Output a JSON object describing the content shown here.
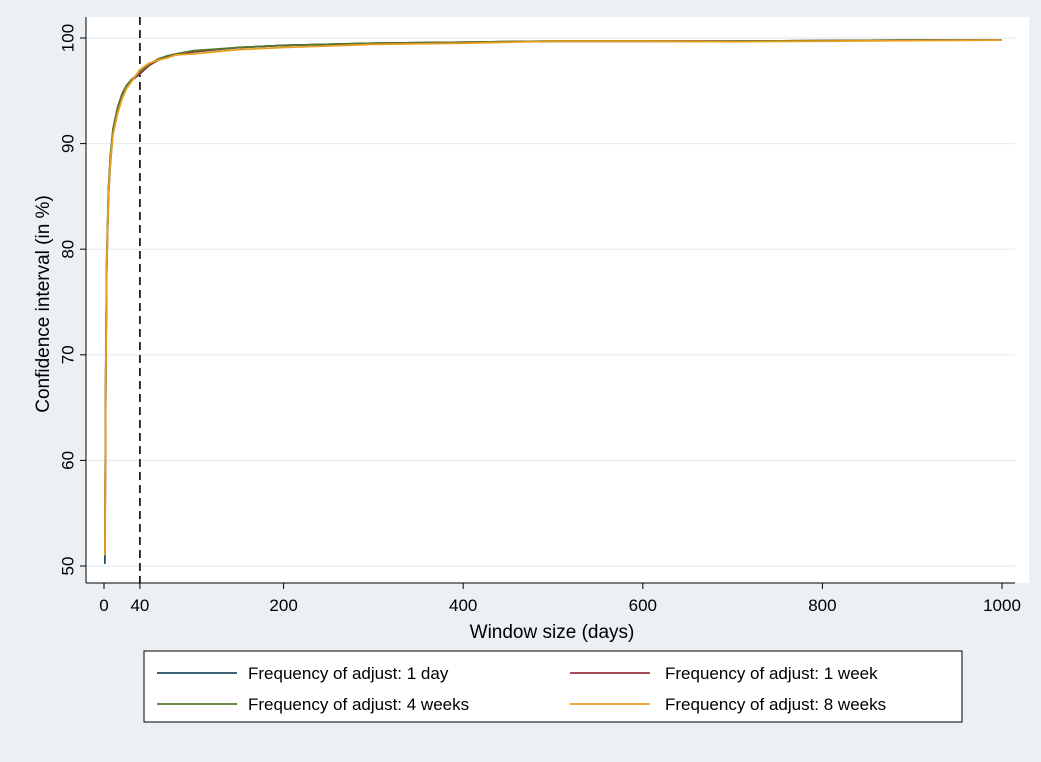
{
  "chart_data": {
    "type": "line",
    "title": "",
    "xlabel": "Window size (days)",
    "ylabel": "Confidence interval (in %)",
    "xlim": [
      0,
      1000
    ],
    "ylim": [
      50,
      100
    ],
    "xticks": [
      0,
      40,
      200,
      400,
      600,
      800,
      1000
    ],
    "yticks": [
      50,
      60,
      70,
      80,
      90,
      100
    ],
    "grid": "horizontal",
    "legend": "bottom",
    "reference_line": {
      "x": 40,
      "style": "dashed"
    },
    "series": [
      {
        "name": "Frequency of adjust: 1 day",
        "color": "#1f4e66",
        "x": [
          1,
          2,
          3,
          5,
          7,
          10,
          15,
          20,
          25,
          30,
          40,
          50,
          60,
          70,
          80,
          100,
          150,
          200,
          300,
          400,
          500,
          600,
          700,
          800,
          900,
          1000
        ],
        "y": [
          50.2,
          68,
          78,
          85,
          88,
          91,
          93,
          94.4,
          95.4,
          96,
          96.6,
          97.4,
          97.9,
          98.2,
          98.4,
          98.7,
          99.1,
          99.3,
          99.5,
          99.6,
          99.7,
          99.7,
          99.7,
          99.75,
          99.8,
          99.8
        ]
      },
      {
        "name": "Frequency of adjust: 1 week",
        "color": "#90353b",
        "x": [
          1,
          2,
          3,
          5,
          7,
          10,
          15,
          20,
          25,
          30,
          40,
          50,
          60,
          70,
          80,
          100,
          150,
          200,
          300,
          400,
          500,
          600,
          700,
          800,
          900,
          1000
        ],
        "y": [
          51.5,
          68.5,
          78.5,
          85.5,
          88.5,
          91.2,
          93.2,
          94.5,
          95.3,
          95.9,
          96.6,
          97.4,
          97.9,
          98.2,
          98.4,
          98.7,
          99.1,
          99.3,
          99.5,
          99.6,
          99.7,
          99.7,
          99.7,
          99.75,
          99.8,
          99.8
        ]
      },
      {
        "name": "Frequency of adjust: 4 weeks",
        "color": "#55752f",
        "x": [
          1,
          2,
          3,
          5,
          7,
          10,
          15,
          20,
          25,
          30,
          40,
          50,
          60,
          70,
          80,
          100,
          150,
          200,
          300,
          400,
          500,
          600,
          700,
          800,
          900,
          1000
        ],
        "y": [
          52,
          69,
          79,
          85.8,
          88.8,
          91.4,
          93.4,
          94.7,
          95.5,
          96,
          96.8,
          97.5,
          98.0,
          98.3,
          98.5,
          98.8,
          99.1,
          99.3,
          99.5,
          99.6,
          99.7,
          99.7,
          99.7,
          99.75,
          99.8,
          99.8
        ]
      },
      {
        "name": "Frequency of adjust: 8 weeks",
        "color": "#e89e1e",
        "x": [
          1,
          2,
          3,
          5,
          7,
          10,
          15,
          20,
          25,
          30,
          40,
          50,
          60,
          70,
          80,
          100,
          150,
          200,
          300,
          400,
          500,
          600,
          700,
          800,
          900,
          1000
        ],
        "y": [
          51,
          68,
          78.2,
          85.2,
          88.2,
          90.8,
          92.8,
          94.2,
          95.2,
          95.8,
          97.0,
          97.6,
          97.9,
          98.1,
          98.4,
          98.5,
          98.9,
          99.1,
          99.4,
          99.5,
          99.7,
          99.7,
          99.65,
          99.7,
          99.75,
          99.8
        ]
      }
    ]
  }
}
